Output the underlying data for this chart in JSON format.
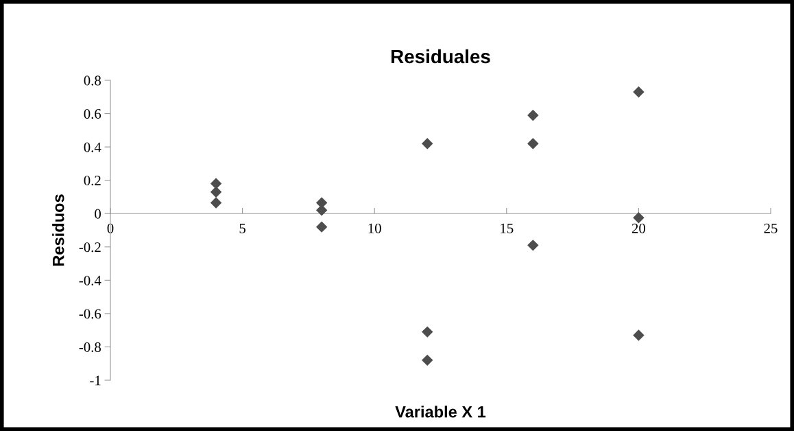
{
  "chart_data": {
    "type": "scatter",
    "title": "Residuales",
    "xlabel": "Variable X 1",
    "ylabel": "Residuos",
    "x": [
      4,
      4,
      4,
      8,
      8,
      8,
      12,
      12,
      12,
      16,
      16,
      16,
      20,
      20,
      20
    ],
    "series": [
      {
        "color": "#4d4d4d",
        "values": [
          0.18,
          0.13,
          0.065,
          0.065,
          0.02,
          -0.08,
          0.42,
          -0.71,
          -0.88,
          0.59,
          0.42,
          -0.19,
          0.73,
          -0.025,
          -0.73
        ]
      }
    ],
    "xlim": [
      0,
      25
    ],
    "xticks": [
      0,
      5,
      10,
      15,
      20,
      25
    ],
    "ylim": [
      -1,
      0.8
    ],
    "yticks": [
      -1,
      -0.8,
      -0.6,
      -0.4,
      -0.2,
      0,
      0.2,
      0.4,
      0.6,
      0.8
    ],
    "marker": "diamond",
    "grid": false,
    "legend": false
  }
}
